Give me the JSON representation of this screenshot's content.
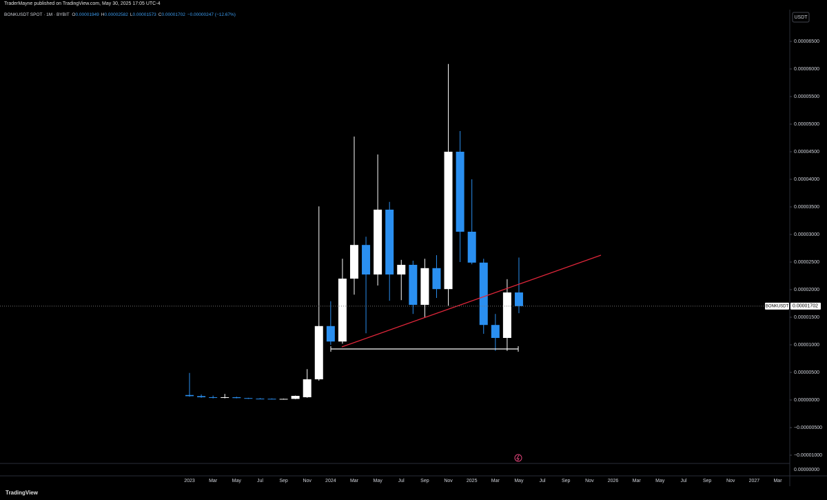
{
  "published": "TraderMayne published on TradingView.com, May 30, 2025 17:05 UTC-4",
  "legend": {
    "symbol": "BONKUSDT SPOT · 1M · BYBIT",
    "ohlc": [
      {
        "label": "O",
        "value": "0.00001949"
      },
      {
        "label": "H",
        "value": "0.00002582"
      },
      {
        "label": "L",
        "value": "0.00001573"
      },
      {
        "label": "C",
        "value": "0.00001702"
      }
    ],
    "change": "−0.00000247 (−12.67%)"
  },
  "currency": "USDT",
  "footer": "TradingView",
  "chart_data": {
    "type": "candlestick",
    "categories": [
      "2023",
      null,
      "Mar",
      null,
      "May",
      null,
      "Jul",
      null,
      "Sep",
      null,
      "Nov",
      null,
      "2024",
      null,
      "Mar",
      null,
      "May",
      null,
      "Jul",
      null,
      "Sep",
      null,
      "Nov",
      null,
      "2025",
      null,
      "Mar",
      null,
      "May",
      null,
      "Jul",
      null,
      "Sep",
      null,
      "Nov",
      null,
      "2026",
      null,
      "Mar",
      null,
      "May",
      null,
      "Jul",
      null,
      "Sep",
      null,
      "Nov",
      null,
      "2027",
      null,
      "Mar"
    ],
    "open": [
      9e-07,
      7e-07,
      5e-07,
      4.5e-07,
      5e-07,
      3.5e-07,
      2.5e-07,
      2.2e-07,
      2e-07,
      2e-07,
      5e-07,
      3.75e-06,
      1.34e-05,
      1.06e-05,
      2.2e-05,
      2.81e-05,
      2.275e-05,
      3.45e-05,
      2.275e-05,
      2.45e-05,
      1.725e-05,
      2.39e-05,
      2.01e-05,
      4.5e-05,
      3.05e-05,
      2.49e-05,
      1.36e-05,
      1.125e-05,
      1.949e-05,
      null,
      null,
      null,
      null,
      null,
      null,
      null,
      null,
      null,
      null,
      null,
      null,
      null,
      null,
      null,
      null,
      null,
      null,
      null,
      null,
      null,
      null
    ],
    "high": [
      4.9e-06,
      1e-06,
      8e-07,
      1.1e-06,
      6e-07,
      4e-07,
      3.5e-07,
      2.8e-07,
      2.5e-07,
      8e-07,
      5.6e-06,
      3.51e-05,
      1.79e-05,
      2.56e-05,
      4.775e-05,
      2.96e-05,
      4.45e-05,
      3.59e-05,
      2.54e-05,
      2.525e-05,
      2.56e-05,
      2.625e-05,
      6.09e-05,
      4.875e-05,
      4e-05,
      2.56e-05,
      1.56e-05,
      2.19e-05,
      2.582e-05,
      null,
      null,
      null,
      null,
      null,
      null,
      null,
      null,
      null,
      null,
      null,
      null,
      null,
      null,
      null,
      null,
      null,
      null,
      null,
      null,
      null,
      null
    ],
    "low": [
      6e-07,
      4e-07,
      3e-07,
      3e-07,
      3e-07,
      2e-07,
      1.8e-07,
      1.5e-07,
      1.5e-07,
      1.5e-07,
      4e-07,
      3.5e-06,
      1e-05,
      1.02e-05,
      1.91e-05,
      1.21e-05,
      2.075e-05,
      1.8e-05,
      1.81e-05,
      1.56e-05,
      1.5e-05,
      1.85e-05,
      1.71e-05,
      2.5e-05,
      2.46e-05,
      1.2e-05,
      8.9e-06,
      8.9e-06,
      1.573e-05,
      null,
      null,
      null,
      null,
      null,
      null,
      null,
      null,
      null,
      null,
      null,
      null,
      null,
      null,
      null,
      null,
      null,
      null,
      null,
      null,
      null,
      null
    ],
    "close": [
      7e-07,
      5e-07,
      4.5e-07,
      5e-07,
      3.5e-07,
      2.5e-07,
      2.2e-07,
      2e-07,
      2e-07,
      7.5e-07,
      3.75e-06,
      1.34e-05,
      1.06e-05,
      2.2e-05,
      2.81e-05,
      2.275e-05,
      3.45e-05,
      2.275e-05,
      2.45e-05,
      1.725e-05,
      2.39e-05,
      2.01e-05,
      4.5e-05,
      3.05e-05,
      2.49e-05,
      1.36e-05,
      1.125e-05,
      1.949e-05,
      1.702e-05,
      null,
      null,
      null,
      null,
      null,
      null,
      null,
      null,
      null,
      null,
      null,
      null,
      null,
      null,
      null,
      null,
      null,
      null,
      null,
      null,
      null,
      null
    ],
    "up_color": "#ffffff",
    "down_color": "#2a8ff0",
    "ylim": [
      -1.375e-05,
      7.075e-05
    ],
    "yticks": [
      {
        "value": 6.5e-05,
        "label": "0.00006500"
      },
      {
        "value": 6e-05,
        "label": "0.00006000"
      },
      {
        "value": 5.5e-05,
        "label": "0.00005500"
      },
      {
        "value": 5e-05,
        "label": "0.00005000"
      },
      {
        "value": 4.5e-05,
        "label": "0.00004500"
      },
      {
        "value": 4e-05,
        "label": "0.00004000"
      },
      {
        "value": 3.5e-05,
        "label": "0.00003500"
      },
      {
        "value": 3e-05,
        "label": "0.00003000"
      },
      {
        "value": 2.5e-05,
        "label": "0.00002500"
      },
      {
        "value": 2e-05,
        "label": "0.00002000"
      },
      {
        "value": 1.5e-05,
        "label": "0.00001500"
      },
      {
        "value": 1e-05,
        "label": "0.00001000"
      },
      {
        "value": 5e-06,
        "label": "0.00000500"
      },
      {
        "value": 0,
        "label": "0.00000000"
      },
      {
        "value": -5e-06,
        "label": "−0.00000500"
      },
      {
        "value": -1e-05,
        "label": "−0.00001000"
      }
    ],
    "volume_axis_label": "0.00000000",
    "last_price": {
      "symbol": "BONKUSDT",
      "value": 1.702e-05,
      "label": "0.00001702"
    }
  }
}
